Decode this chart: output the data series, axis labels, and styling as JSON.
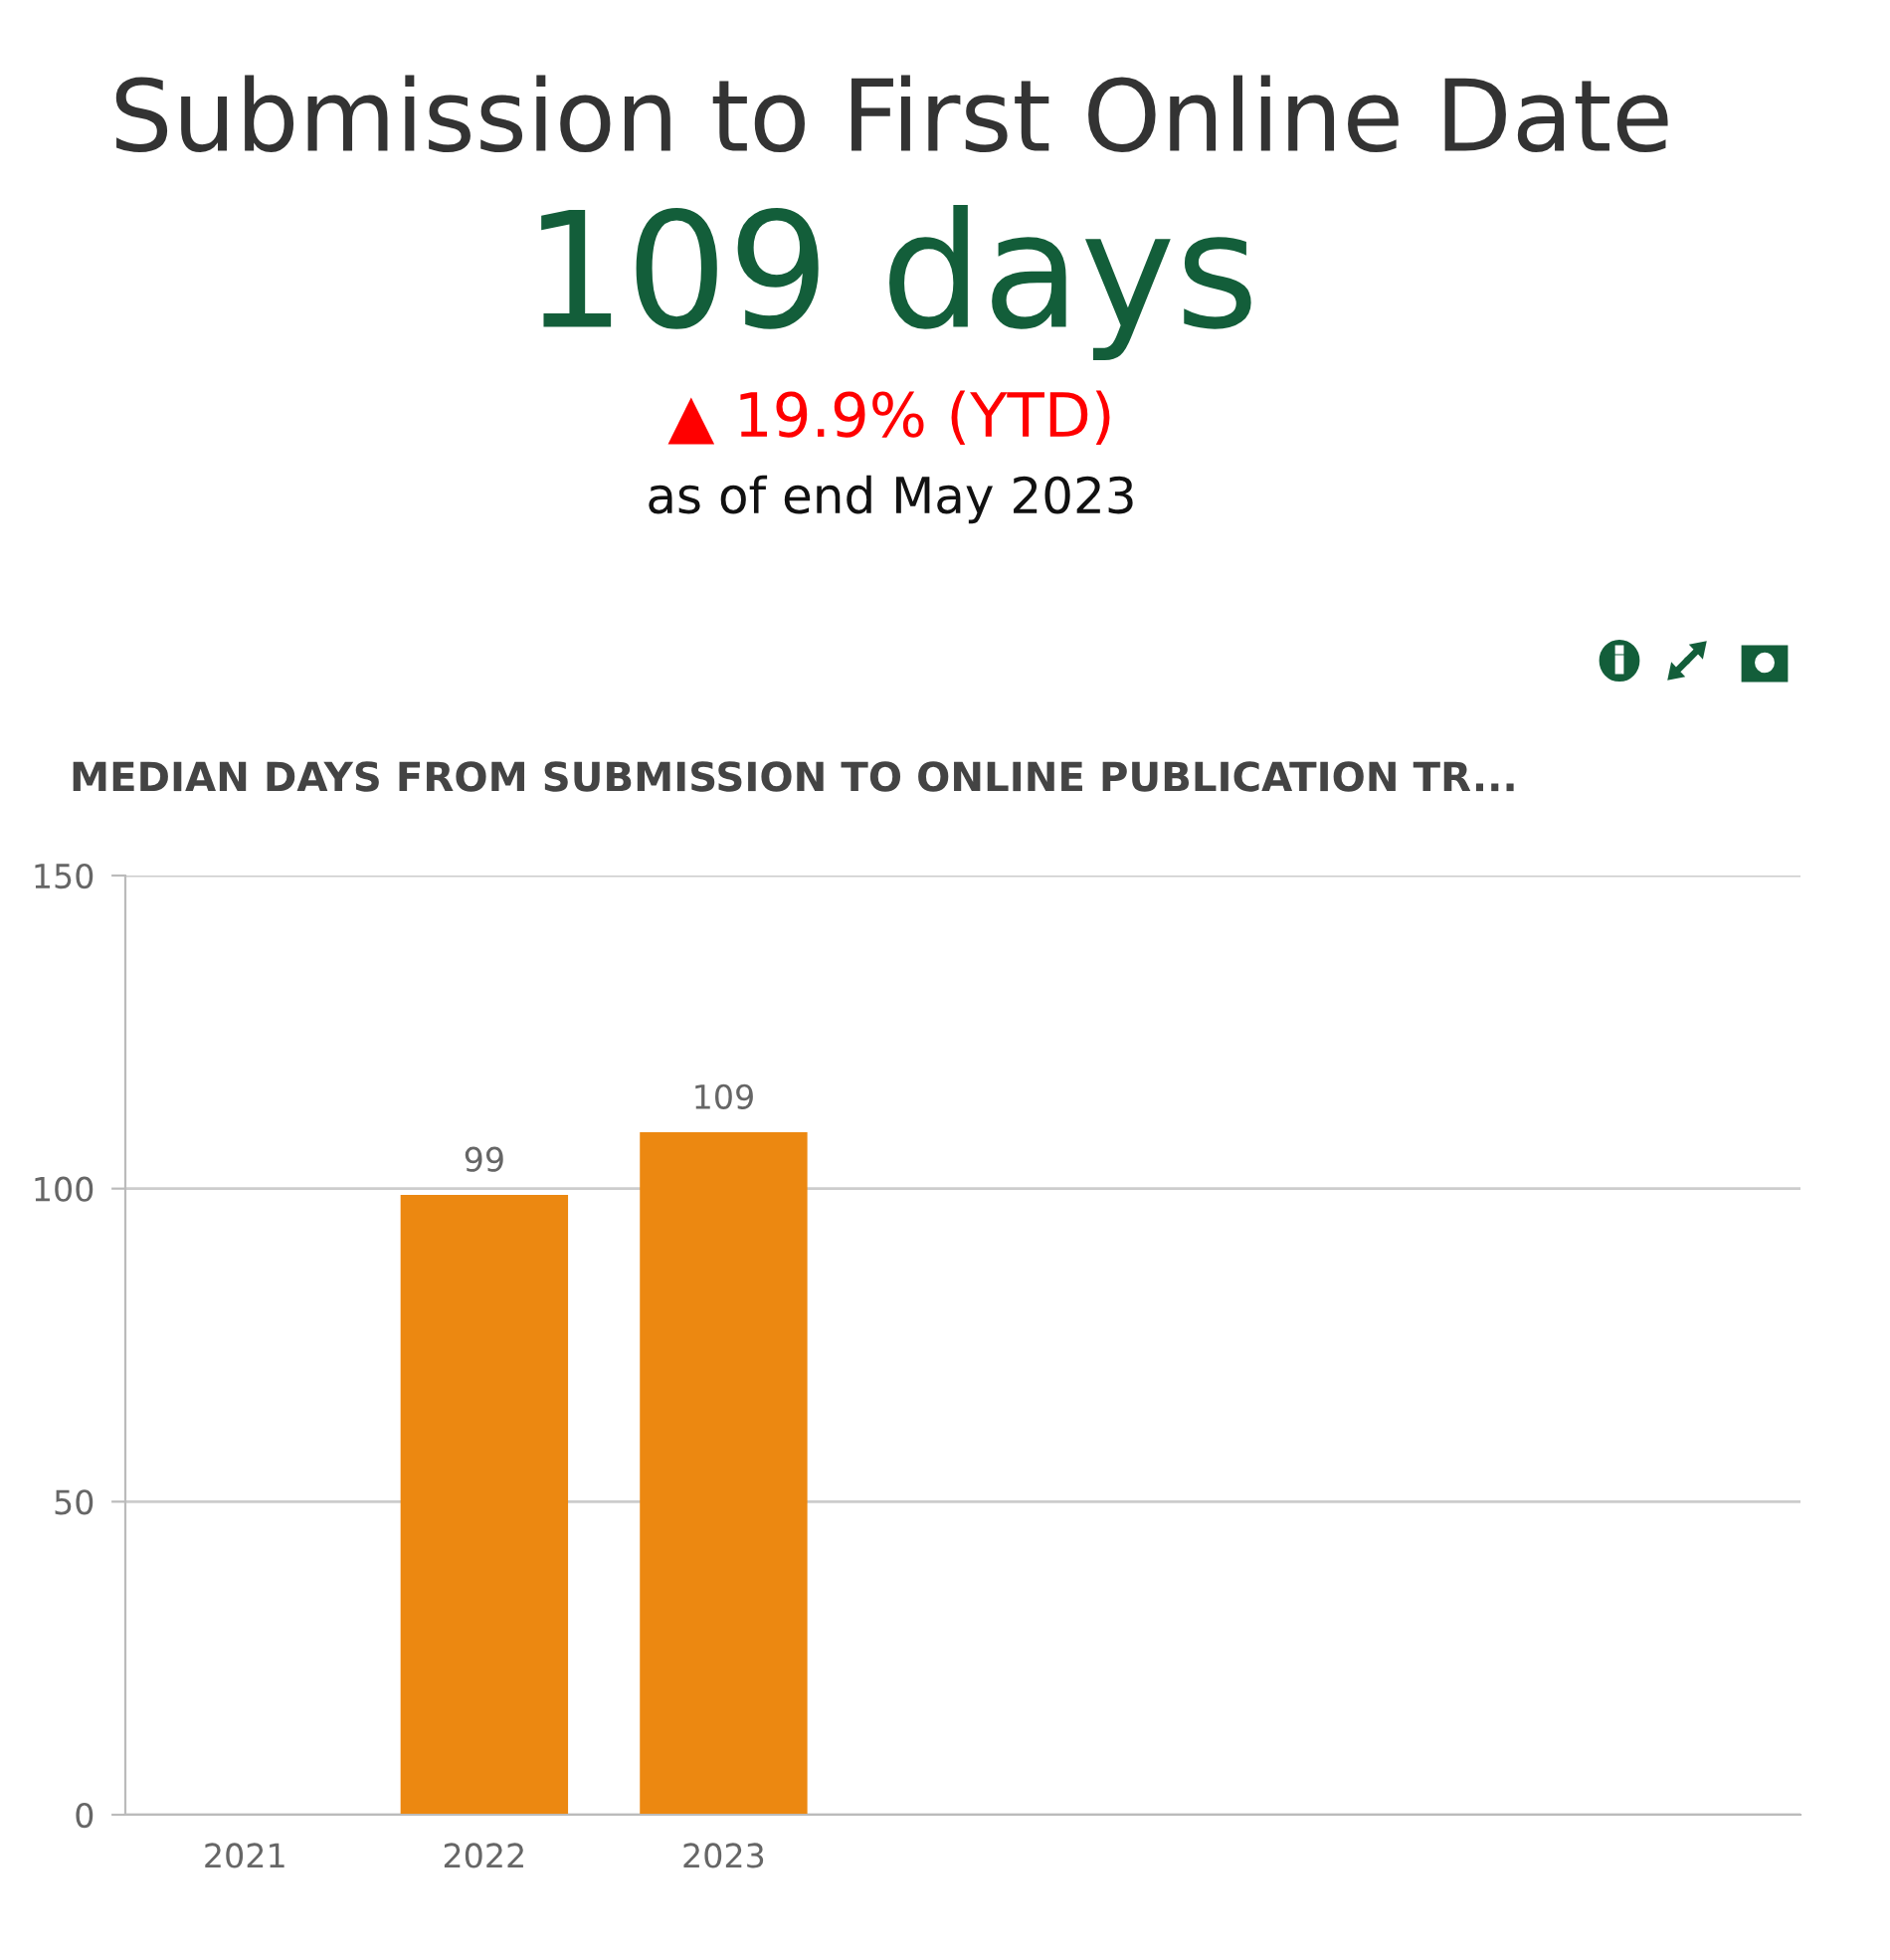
{
  "chart_data": {
    "type": "bar",
    "title": "Submission to First Online Date",
    "subtitle": "MEDIAN DAYS FROM SUBMISSION TO ONLINE PUBLICATION TR...",
    "annotations": [
      "109 days",
      "▲ 19.9% (YTD)",
      "as of end May 2023"
    ],
    "categories": [
      "2021",
      "2022",
      "2023",
      null,
      null,
      null,
      null
    ],
    "values": [
      null,
      99,
      109,
      null,
      null,
      null,
      null
    ],
    "color": "#ec8811",
    "ylim": [
      0,
      150
    ],
    "yticks": [
      0,
      50,
      100,
      150
    ],
    "grid": "y",
    "data_labels": true
  }
}
